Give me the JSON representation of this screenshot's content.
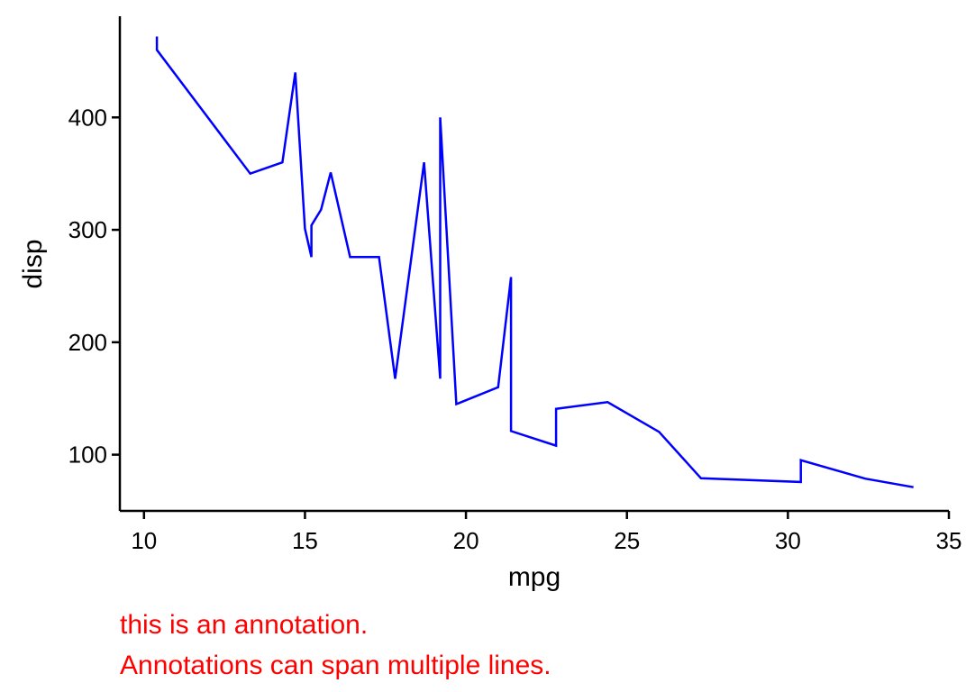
{
  "chart_data": {
    "type": "line",
    "xlabel": "mpg",
    "ylabel": "disp",
    "xlim": [
      9.25,
      35.0
    ],
    "ylim": [
      50,
      490
    ],
    "x_ticks": [
      10,
      15,
      20,
      25,
      30,
      35
    ],
    "y_ticks": [
      100,
      200,
      300,
      400
    ],
    "grid": false,
    "legend": "none",
    "line_color": "#0000ff",
    "series": [
      {
        "x": [
          10.4,
          10.4,
          13.3,
          14.3,
          14.7,
          15.0,
          15.2,
          15.2,
          15.5,
          15.8,
          16.4,
          17.3,
          17.8,
          18.7,
          19.2,
          19.2,
          19.7,
          21.0,
          21.4,
          21.4,
          22.8,
          22.8,
          24.4,
          26.0,
          27.3,
          30.4,
          30.4,
          32.4,
          33.9
        ],
        "y": [
          472,
          460,
          350,
          360,
          440,
          301,
          275.8,
          304,
          318,
          351,
          275.8,
          275.8,
          167.6,
          360,
          167.6,
          400,
          145,
          160,
          258,
          121,
          108,
          140.8,
          146.7,
          120.3,
          79,
          75.7,
          95.1,
          78.7,
          71.1
        ]
      }
    ]
  },
  "annotation": {
    "lines": [
      "this is an annotation.",
      "Annotations can span multiple lines."
    ],
    "color": "#ff0000"
  }
}
